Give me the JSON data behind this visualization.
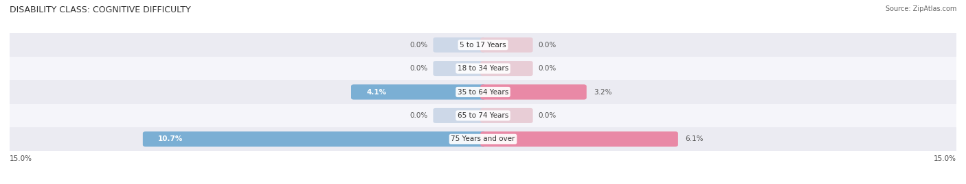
{
  "title": "DISABILITY CLASS: COGNITIVE DIFFICULTY",
  "source_text": "Source: ZipAtlas.com",
  "categories": [
    "5 to 17 Years",
    "18 to 34 Years",
    "35 to 64 Years",
    "65 to 74 Years",
    "75 Years and over"
  ],
  "male_values": [
    0.0,
    0.0,
    4.1,
    0.0,
    10.7
  ],
  "female_values": [
    0.0,
    0.0,
    3.2,
    0.0,
    6.1
  ],
  "x_max": 15.0,
  "male_color": "#7bafd4",
  "female_color": "#e989a6",
  "bar_bg_male_color": "#cdd8e8",
  "bar_bg_female_color": "#e8cdd6",
  "row_bg_even": "#ebebf2",
  "row_bg_odd": "#f5f5fa",
  "title_fontsize": 9,
  "label_fontsize": 7.5,
  "tick_fontsize": 7.5,
  "source_fontsize": 7,
  "legend_fontsize": 8,
  "bar_height": 0.48,
  "fig_width": 14.06,
  "fig_height": 2.69
}
